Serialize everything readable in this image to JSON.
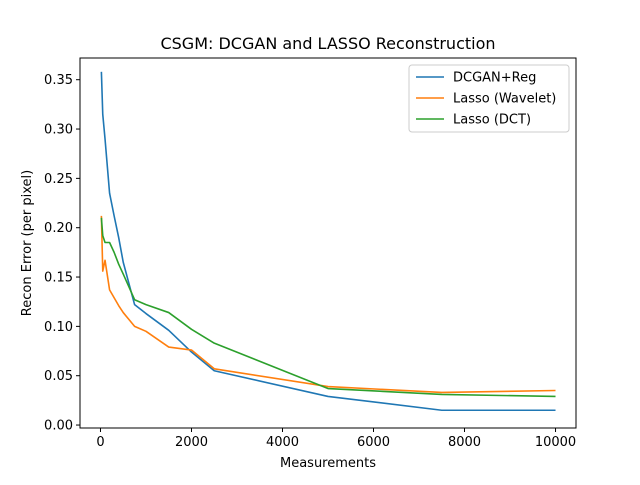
{
  "chart_data": {
    "type": "line",
    "title": "CSGM: DCGAN and LASSO Reconstruction",
    "xlabel": "Measurements",
    "ylabel": "Recon Error (per pixel)",
    "xlim": [
      -450,
      10450
    ],
    "ylim": [
      -0.003,
      0.372
    ],
    "xticks": [
      0,
      2000,
      4000,
      6000,
      8000,
      10000
    ],
    "xtick_labels": [
      "0",
      "2000",
      "4000",
      "6000",
      "8000",
      "10000"
    ],
    "yticks": [
      0.0,
      0.05,
      0.1,
      0.15,
      0.2,
      0.25,
      0.3,
      0.35
    ],
    "ytick_labels": [
      "0.00",
      "0.05",
      "0.10",
      "0.15",
      "0.20",
      "0.25",
      "0.30",
      "0.35"
    ],
    "grid": false,
    "legend_position": "top-right",
    "series": [
      {
        "name": "DCGAN+Reg",
        "color": "#1f77b4",
        "x": [
          20,
          50,
          100,
          200,
          300,
          400,
          500,
          750,
          1000,
          1500,
          2000,
          2500,
          5000,
          7500,
          10000
        ],
        "y": [
          0.358,
          0.315,
          0.29,
          0.235,
          0.212,
          0.19,
          0.165,
          0.122,
          0.113,
          0.096,
          0.074,
          0.055,
          0.029,
          0.015,
          0.015
        ]
      },
      {
        "name": "Lasso (Wavelet)",
        "color": "#ff7f0e",
        "x": [
          20,
          50,
          100,
          200,
          300,
          400,
          500,
          750,
          1000,
          1500,
          2000,
          2500,
          5000,
          7500,
          10000
        ],
        "y": [
          0.212,
          0.156,
          0.167,
          0.137,
          0.129,
          0.121,
          0.114,
          0.1,
          0.095,
          0.079,
          0.076,
          0.057,
          0.039,
          0.033,
          0.035
        ]
      },
      {
        "name": "Lasso (DCT)",
        "color": "#2ca02c",
        "x": [
          20,
          50,
          100,
          200,
          300,
          400,
          500,
          750,
          1000,
          1500,
          2000,
          2500,
          5000,
          7500,
          10000
        ],
        "y": [
          0.21,
          0.192,
          0.185,
          0.185,
          0.175,
          0.163,
          0.153,
          0.127,
          0.122,
          0.114,
          0.097,
          0.083,
          0.037,
          0.031,
          0.029
        ]
      }
    ]
  }
}
